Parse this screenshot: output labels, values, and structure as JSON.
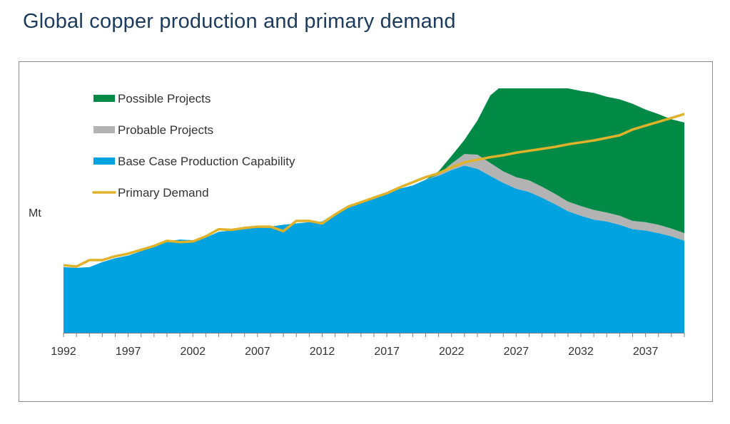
{
  "chart_data": {
    "type": "area",
    "title": "Global copper production and primary demand",
    "xlabel": "",
    "ylabel": "Mt",
    "xlim": [
      1992,
      2040
    ],
    "ylim": [
      0,
      38
    ],
    "grid": false,
    "legend_position": "top-left",
    "x_ticks": [
      1992,
      1997,
      2002,
      2007,
      2012,
      2017,
      2022,
      2027,
      2032,
      2037
    ],
    "x": [
      1992,
      1993,
      1994,
      1995,
      1996,
      1997,
      1998,
      1999,
      2000,
      2001,
      2002,
      2003,
      2004,
      2005,
      2006,
      2007,
      2008,
      2009,
      2010,
      2011,
      2012,
      2013,
      2014,
      2015,
      2016,
      2017,
      2018,
      2019,
      2020,
      2021,
      2022,
      2023,
      2024,
      2025,
      2026,
      2027,
      2028,
      2029,
      2030,
      2031,
      2032,
      2033,
      2034,
      2035,
      2036,
      2037,
      2038,
      2039,
      2040
    ],
    "series": [
      {
        "name": "Base Case Production Capability",
        "kind": "stacked-area",
        "color": "#00a3e0",
        "values": [
          10.2,
          10.1,
          10.2,
          11.0,
          11.6,
          12.0,
          12.7,
          13.4,
          14.2,
          14.5,
          14.4,
          14.8,
          15.7,
          15.9,
          16.1,
          16.4,
          16.5,
          16.8,
          17.0,
          17.2,
          17.3,
          18.6,
          19.5,
          20.2,
          21.2,
          21.5,
          22.4,
          22.9,
          23.8,
          24.4,
          25.3,
          26.0,
          25.5,
          24.4,
          23.3,
          22.4,
          21.9,
          21.0,
          20.0,
          18.9,
          18.2,
          17.6,
          17.3,
          16.8,
          16.1,
          15.9,
          15.5,
          15.0,
          14.3
        ]
      },
      {
        "name": "Probable Projects",
        "kind": "stacked-area",
        "color": "#b3b3b3",
        "values": [
          0,
          0,
          0,
          0,
          0,
          0,
          0,
          0,
          0,
          0,
          0,
          0,
          0,
          0,
          0,
          0,
          0,
          0,
          0,
          0,
          0,
          0,
          0,
          0,
          0,
          0,
          0,
          0,
          0,
          0.2,
          1.0,
          1.8,
          2.2,
          2.0,
          1.8,
          1.8,
          1.8,
          1.7,
          1.6,
          1.5,
          1.5,
          1.5,
          1.4,
          1.4,
          1.3,
          1.3,
          1.3,
          1.2,
          1.2
        ]
      },
      {
        "name": "Possible Projects",
        "kind": "stacked-area",
        "color": "#008a45",
        "values": [
          0,
          0,
          0,
          0,
          0,
          0,
          0,
          0,
          0,
          0,
          0,
          0,
          0,
          0,
          0,
          0,
          0,
          0,
          0,
          0,
          0,
          0,
          0,
          0,
          0,
          0,
          0,
          0,
          0,
          0.5,
          1.2,
          2.2,
          5.3,
          10.5,
          13.5,
          14.7,
          15.2,
          16.2,
          17.3,
          17.6,
          17.9,
          18.2,
          18.0,
          18.1,
          18.2,
          17.5,
          17.2,
          17.0,
          17.2
        ]
      },
      {
        "name": "Primary Demand",
        "kind": "line",
        "color": "#e0b22a",
        "values": [
          10.5,
          10.3,
          11.3,
          11.3,
          11.9,
          12.3,
          12.9,
          13.5,
          14.3,
          14.1,
          14.2,
          15.0,
          16.1,
          16.0,
          16.3,
          16.5,
          16.5,
          15.8,
          17.4,
          17.4,
          17.0,
          18.4,
          19.6,
          20.3,
          21.0,
          21.7,
          22.6,
          23.4,
          24.2,
          24.8,
          25.7,
          26.5,
          26.9,
          27.3,
          27.6,
          28.0,
          28.3,
          28.6,
          28.9,
          29.3,
          29.6,
          29.9,
          30.3,
          30.7,
          31.6,
          32.2,
          32.8,
          33.4,
          34.0
        ]
      }
    ]
  },
  "legend": [
    {
      "label": "Possible Projects",
      "color": "#008a45",
      "style": "bar"
    },
    {
      "label": "Probable Projects",
      "color": "#b3b3b3",
      "style": "bar"
    },
    {
      "label": "Base Case Production Capability",
      "color": "#00a3e0",
      "style": "bar"
    },
    {
      "label": "Primary Demand",
      "color": "#e0b22a",
      "style": "line"
    }
  ]
}
